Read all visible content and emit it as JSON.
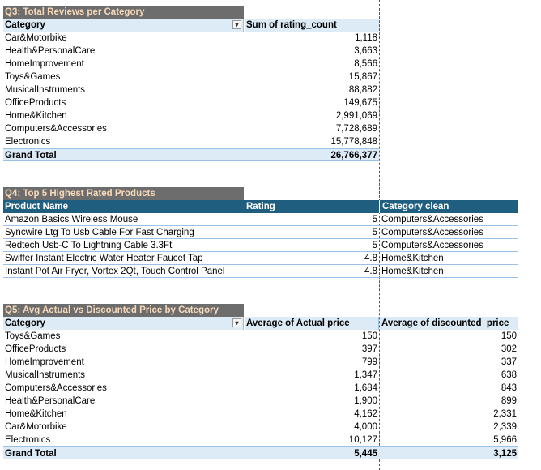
{
  "q3": {
    "title": "Q3: Total Reviews per Category",
    "header": [
      "Category",
      "Sum of rating_count"
    ],
    "rows": [
      {
        "category": "Car&Motorbike",
        "value": "1,118"
      },
      {
        "category": "Health&PersonalCare",
        "value": "3,663"
      },
      {
        "category": "HomeImprovement",
        "value": "8,566"
      },
      {
        "category": "Toys&Games",
        "value": "15,867"
      },
      {
        "category": "MusicalInstruments",
        "value": "88,882"
      },
      {
        "category": "OfficeProducts",
        "value": "149,675"
      },
      {
        "category": "Home&Kitchen",
        "value": "2,991,069"
      },
      {
        "category": "Computers&Accessories",
        "value": "7,728,689"
      },
      {
        "category": "Electronics",
        "value": "15,778,848"
      }
    ],
    "total_label": "Grand Total",
    "total_value": "26,766,377"
  },
  "q4": {
    "title": "Q4: Top 5 Highest Rated Products",
    "header": [
      "Product Name",
      "Rating",
      "Category clean"
    ],
    "rows": [
      {
        "product": "Amazon Basics Wireless Mouse",
        "rating": "5",
        "category": "Computers&Accessories"
      },
      {
        "product": "Syncwire Ltg To Usb Cable For Fast Charging",
        "rating": "5",
        "category": "Computers&Accessories"
      },
      {
        "product": "Redtech Usb-C To Lightning Cable 3.3Ft",
        "rating": "5",
        "category": "Computers&Accessories"
      },
      {
        "product": "Swiffer Instant Electric Water Heater Faucet Tap",
        "rating": "4.8",
        "category": "Home&Kitchen"
      },
      {
        "product": "Instant Pot Air Fryer, Vortex 2Qt, Touch Control Panel",
        "rating": "4.8",
        "category": "Home&Kitchen"
      }
    ]
  },
  "q5": {
    "title": "Q5: Avg Actual vs Discounted Price by Category",
    "header": [
      "Category",
      "Average of Actual price",
      "Average of discounted_price"
    ],
    "rows": [
      {
        "category": "Toys&Games",
        "actual": "150",
        "discounted": "150"
      },
      {
        "category": "OfficeProducts",
        "actual": "397",
        "discounted": "302"
      },
      {
        "category": "HomeImprovement",
        "actual": "799",
        "discounted": "337"
      },
      {
        "category": "MusicalInstruments",
        "actual": "1,347",
        "discounted": "638"
      },
      {
        "category": "Computers&Accessories",
        "actual": "1,684",
        "discounted": "843"
      },
      {
        "category": "Health&PersonalCare",
        "actual": "1,900",
        "discounted": "899"
      },
      {
        "category": "Home&Kitchen",
        "actual": "4,162",
        "discounted": "2,331"
      },
      {
        "category": "Car&Motorbike",
        "actual": "4,000",
        "discounted": "2,339"
      },
      {
        "category": "Electronics",
        "actual": "10,127",
        "discounted": "5,966"
      }
    ],
    "total_label": "Grand Total",
    "total_actual": "5,445",
    "total_discounted": "3,125"
  },
  "colors": {
    "title_bg": "#6d6d6d",
    "title_text": "#f7d9b9",
    "pivot_header_bg": "#ddebf7",
    "table_header_bg": "#1f5e7e"
  },
  "icons": {
    "filter": "filter-sort-icon"
  }
}
